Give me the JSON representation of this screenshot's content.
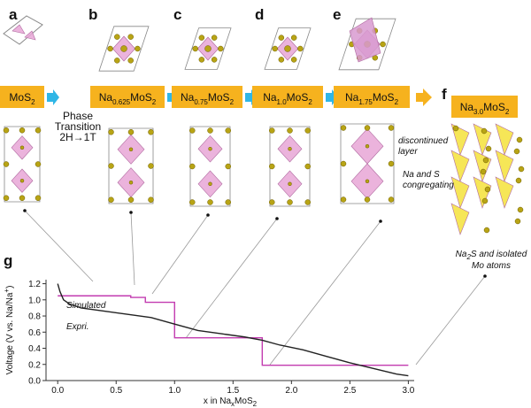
{
  "panels": [
    {
      "letter": "a",
      "formula": [
        "MoS",
        "2"
      ]
    },
    {
      "letter": "b",
      "formula": [
        "Na",
        "0.625",
        "MoS",
        "2"
      ]
    },
    {
      "letter": "c",
      "formula": [
        "Na",
        "0.75",
        "MoS",
        "2"
      ]
    },
    {
      "letter": "d",
      "formula": [
        "Na",
        "1.0",
        "MoS",
        "2"
      ]
    },
    {
      "letter": "e",
      "formula": [
        "Na",
        "1.75",
        "MoS",
        "2"
      ]
    },
    {
      "letter": "f",
      "formula": [
        "Na",
        "3.0",
        "MoS",
        "2"
      ]
    }
  ],
  "phase_transition": [
    "Phase",
    "Transition",
    "2H→1T"
  ],
  "annotations": {
    "discontinued": [
      "discontinued",
      "layer"
    ],
    "congregating": [
      "Na and S",
      "congregating"
    ],
    "na2s": [
      "Na",
      "2",
      "S and isolated"
    ],
    "mo_atoms": "Mo atoms"
  },
  "chart_data": {
    "type": "line",
    "panel_letter": "g",
    "xlabel": [
      "x in Na",
      "x",
      "MoS",
      "2"
    ],
    "ylabel": [
      "Voltage (V vs. Na/Na",
      "+",
      ")"
    ],
    "xlim": [
      -0.1,
      3.05
    ],
    "ylim": [
      0,
      1.25
    ],
    "xticks": [
      {
        "value": 0,
        "label": "0.0"
      },
      0.5,
      {
        "value": 1,
        "label": "1.0"
      },
      1.5,
      {
        "value": 2,
        "label": "2.0"
      },
      2.5,
      {
        "value": 3,
        "label": "3.0"
      }
    ],
    "yticks": [
      {
        "value": 0,
        "label": "0.0"
      },
      0.2,
      0.4,
      0.6,
      0.8,
      {
        "value": 1,
        "label": "1.0"
      },
      1.2
    ],
    "series": [
      {
        "name": "Simulated",
        "color": "#c23bb0",
        "x": [
          0,
          0.625,
          0.625,
          0.75,
          0.75,
          1.0,
          1.0,
          1.75,
          1.75,
          3.0
        ],
        "values": [
          1.05,
          1.05,
          1.03,
          1.03,
          0.97,
          0.97,
          0.53,
          0.53,
          0.19,
          0.19
        ]
      },
      {
        "name": "Expri.",
        "color": "#222222",
        "x": [
          0,
          0.02,
          0.05,
          0.1,
          0.2,
          0.4,
          0.6,
          0.8,
          1.0,
          1.2,
          1.4,
          1.6,
          1.75,
          1.9,
          2.1,
          2.3,
          2.5,
          2.7,
          2.9,
          3.0
        ],
        "values": [
          1.2,
          1.1,
          1.0,
          0.95,
          0.9,
          0.86,
          0.82,
          0.78,
          0.7,
          0.62,
          0.58,
          0.54,
          0.5,
          0.44,
          0.38,
          0.3,
          0.22,
          0.15,
          0.08,
          0.06
        ]
      }
    ]
  }
}
